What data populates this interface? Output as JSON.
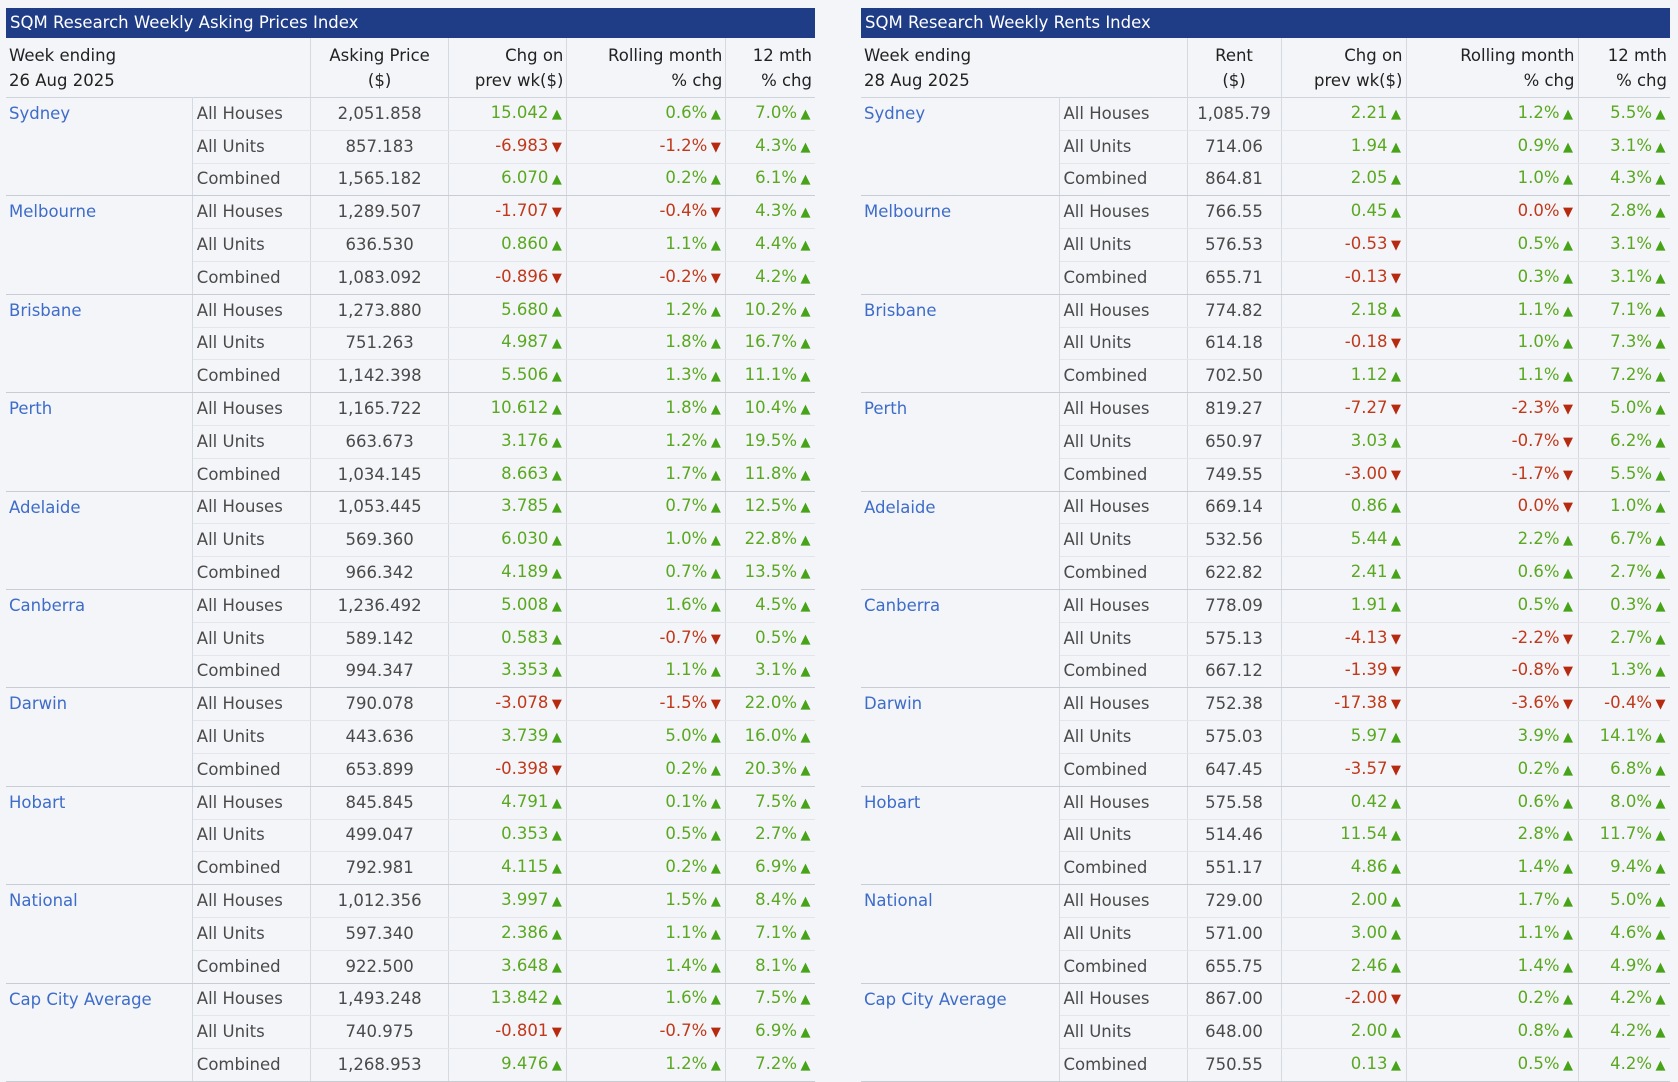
{
  "prices": {
    "title": "SQM Research Weekly Asking Prices Index",
    "headers": {
      "week_label": "Week ending",
      "week_date": "26 Aug 2025",
      "value_l1": "Asking Price",
      "value_l2": "($)",
      "chg_l1": "Chg on",
      "chg_l2": "prev wk($)",
      "roll_l1": "Rolling month",
      "roll_l2": "% chg",
      "yr_l1": "12 mth",
      "yr_l2": "% chg"
    },
    "groups": [
      {
        "city": "Sydney",
        "rows": [
          {
            "type": "All Houses",
            "value": "2,051.858",
            "chg": "15.042",
            "chg_dir": "up",
            "roll": "0.6%",
            "roll_dir": "up",
            "yr": "7.0%",
            "yr_dir": "up"
          },
          {
            "type": "All Units",
            "value": "857.183",
            "chg": "-6.983",
            "chg_dir": "down",
            "roll": "-1.2%",
            "roll_dir": "down",
            "yr": "4.3%",
            "yr_dir": "up"
          },
          {
            "type": "Combined",
            "value": "1,565.182",
            "chg": "6.070",
            "chg_dir": "up",
            "roll": "0.2%",
            "roll_dir": "up",
            "yr": "6.1%",
            "yr_dir": "up"
          }
        ]
      },
      {
        "city": "Melbourne",
        "rows": [
          {
            "type": "All Houses",
            "value": "1,289.507",
            "chg": "-1.707",
            "chg_dir": "down",
            "roll": "-0.4%",
            "roll_dir": "down",
            "yr": "4.3%",
            "yr_dir": "up"
          },
          {
            "type": "All Units",
            "value": "636.530",
            "chg": "0.860",
            "chg_dir": "up",
            "roll": "1.1%",
            "roll_dir": "up",
            "yr": "4.4%",
            "yr_dir": "up"
          },
          {
            "type": "Combined",
            "value": "1,083.092",
            "chg": "-0.896",
            "chg_dir": "down",
            "roll": "-0.2%",
            "roll_dir": "down",
            "yr": "4.2%",
            "yr_dir": "up"
          }
        ]
      },
      {
        "city": "Brisbane",
        "rows": [
          {
            "type": "All Houses",
            "value": "1,273.880",
            "chg": "5.680",
            "chg_dir": "up",
            "roll": "1.2%",
            "roll_dir": "up",
            "yr": "10.2%",
            "yr_dir": "up"
          },
          {
            "type": "All Units",
            "value": "751.263",
            "chg": "4.987",
            "chg_dir": "up",
            "roll": "1.8%",
            "roll_dir": "up",
            "yr": "16.7%",
            "yr_dir": "up"
          },
          {
            "type": "Combined",
            "value": "1,142.398",
            "chg": "5.506",
            "chg_dir": "up",
            "roll": "1.3%",
            "roll_dir": "up",
            "yr": "11.1%",
            "yr_dir": "up"
          }
        ]
      },
      {
        "city": "Perth",
        "rows": [
          {
            "type": "All Houses",
            "value": "1,165.722",
            "chg": "10.612",
            "chg_dir": "up",
            "roll": "1.8%",
            "roll_dir": "up",
            "yr": "10.4%",
            "yr_dir": "up"
          },
          {
            "type": "All Units",
            "value": "663.673",
            "chg": "3.176",
            "chg_dir": "up",
            "roll": "1.2%",
            "roll_dir": "up",
            "yr": "19.5%",
            "yr_dir": "up"
          },
          {
            "type": "Combined",
            "value": "1,034.145",
            "chg": "8.663",
            "chg_dir": "up",
            "roll": "1.7%",
            "roll_dir": "up",
            "yr": "11.8%",
            "yr_dir": "up"
          }
        ]
      },
      {
        "city": "Adelaide",
        "rows": [
          {
            "type": "All Houses",
            "value": "1,053.445",
            "chg": "3.785",
            "chg_dir": "up",
            "roll": "0.7%",
            "roll_dir": "up",
            "yr": "12.5%",
            "yr_dir": "up"
          },
          {
            "type": "All Units",
            "value": "569.360",
            "chg": "6.030",
            "chg_dir": "up",
            "roll": "1.0%",
            "roll_dir": "up",
            "yr": "22.8%",
            "yr_dir": "up"
          },
          {
            "type": "Combined",
            "value": "966.342",
            "chg": "4.189",
            "chg_dir": "up",
            "roll": "0.7%",
            "roll_dir": "up",
            "yr": "13.5%",
            "yr_dir": "up"
          }
        ]
      },
      {
        "city": "Canberra",
        "rows": [
          {
            "type": "All Houses",
            "value": "1,236.492",
            "chg": "5.008",
            "chg_dir": "up",
            "roll": "1.6%",
            "roll_dir": "up",
            "yr": "4.5%",
            "yr_dir": "up"
          },
          {
            "type": "All Units",
            "value": "589.142",
            "chg": "0.583",
            "chg_dir": "up",
            "roll": "-0.7%",
            "roll_dir": "down",
            "yr": "0.5%",
            "yr_dir": "up"
          },
          {
            "type": "Combined",
            "value": "994.347",
            "chg": "3.353",
            "chg_dir": "up",
            "roll": "1.1%",
            "roll_dir": "up",
            "yr": "3.1%",
            "yr_dir": "up"
          }
        ]
      },
      {
        "city": "Darwin",
        "rows": [
          {
            "type": "All Houses",
            "value": "790.078",
            "chg": "-3.078",
            "chg_dir": "down",
            "roll": "-1.5%",
            "roll_dir": "down",
            "yr": "22.0%",
            "yr_dir": "up"
          },
          {
            "type": "All Units",
            "value": "443.636",
            "chg": "3.739",
            "chg_dir": "up",
            "roll": "5.0%",
            "roll_dir": "up",
            "yr": "16.0%",
            "yr_dir": "up"
          },
          {
            "type": "Combined",
            "value": "653.899",
            "chg": "-0.398",
            "chg_dir": "down",
            "roll": "0.2%",
            "roll_dir": "up",
            "yr": "20.3%",
            "yr_dir": "up"
          }
        ]
      },
      {
        "city": "Hobart",
        "rows": [
          {
            "type": "All Houses",
            "value": "845.845",
            "chg": "4.791",
            "chg_dir": "up",
            "roll": "0.1%",
            "roll_dir": "up",
            "yr": "7.5%",
            "yr_dir": "up"
          },
          {
            "type": "All Units",
            "value": "499.047",
            "chg": "0.353",
            "chg_dir": "up",
            "roll": "0.5%",
            "roll_dir": "up",
            "yr": "2.7%",
            "yr_dir": "up"
          },
          {
            "type": "Combined",
            "value": "792.981",
            "chg": "4.115",
            "chg_dir": "up",
            "roll": "0.2%",
            "roll_dir": "up",
            "yr": "6.9%",
            "yr_dir": "up"
          }
        ]
      },
      {
        "city": "National",
        "rows": [
          {
            "type": "All Houses",
            "value": "1,012.356",
            "chg": "3.997",
            "chg_dir": "up",
            "roll": "1.5%",
            "roll_dir": "up",
            "yr": "8.4%",
            "yr_dir": "up"
          },
          {
            "type": "All Units",
            "value": "597.340",
            "chg": "2.386",
            "chg_dir": "up",
            "roll": "1.1%",
            "roll_dir": "up",
            "yr": "7.1%",
            "yr_dir": "up"
          },
          {
            "type": "Combined",
            "value": "922.500",
            "chg": "3.648",
            "chg_dir": "up",
            "roll": "1.4%",
            "roll_dir": "up",
            "yr": "8.1%",
            "yr_dir": "up"
          }
        ]
      },
      {
        "city": "Cap City Average",
        "rows": [
          {
            "type": "All Houses",
            "value": "1,493.248",
            "chg": "13.842",
            "chg_dir": "up",
            "roll": "1.6%",
            "roll_dir": "up",
            "yr": "7.5%",
            "yr_dir": "up"
          },
          {
            "type": "All Units",
            "value": "740.975",
            "chg": "-0.801",
            "chg_dir": "down",
            "roll": "-0.7%",
            "roll_dir": "down",
            "yr": "6.9%",
            "yr_dir": "up"
          },
          {
            "type": "Combined",
            "value": "1,268.953",
            "chg": "9.476",
            "chg_dir": "up",
            "roll": "1.2%",
            "roll_dir": "up",
            "yr": "7.2%",
            "yr_dir": "up"
          }
        ]
      }
    ]
  },
  "rents": {
    "title": "SQM Research Weekly Rents Index",
    "headers": {
      "week_label": "Week ending",
      "week_date": "28 Aug 2025",
      "value_l1": "Rent",
      "value_l2": "($)",
      "chg_l1": "Chg on",
      "chg_l2": "prev wk($)",
      "roll_l1": "Rolling month",
      "roll_l2": "% chg",
      "yr_l1": "12 mth",
      "yr_l2": "% chg"
    },
    "groups": [
      {
        "city": "Sydney",
        "rows": [
          {
            "type": "All Houses",
            "value": "1,085.79",
            "chg": "2.21",
            "chg_dir": "up",
            "roll": "1.2%",
            "roll_dir": "up",
            "yr": "5.5%",
            "yr_dir": "up"
          },
          {
            "type": "All Units",
            "value": "714.06",
            "chg": "1.94",
            "chg_dir": "up",
            "roll": "0.9%",
            "roll_dir": "up",
            "yr": "3.1%",
            "yr_dir": "up"
          },
          {
            "type": "Combined",
            "value": "864.81",
            "chg": "2.05",
            "chg_dir": "up",
            "roll": "1.0%",
            "roll_dir": "up",
            "yr": "4.3%",
            "yr_dir": "up"
          }
        ]
      },
      {
        "city": "Melbourne",
        "rows": [
          {
            "type": "All Houses",
            "value": "766.55",
            "chg": "0.45",
            "chg_dir": "up",
            "roll": "0.0%",
            "roll_dir": "down",
            "yr": "2.8%",
            "yr_dir": "up"
          },
          {
            "type": "All Units",
            "value": "576.53",
            "chg": "-0.53",
            "chg_dir": "down",
            "roll": "0.5%",
            "roll_dir": "up",
            "yr": "3.1%",
            "yr_dir": "up"
          },
          {
            "type": "Combined",
            "value": "655.71",
            "chg": "-0.13",
            "chg_dir": "down",
            "roll": "0.3%",
            "roll_dir": "up",
            "yr": "3.1%",
            "yr_dir": "up"
          }
        ]
      },
      {
        "city": "Brisbane",
        "rows": [
          {
            "type": "All Houses",
            "value": "774.82",
            "chg": "2.18",
            "chg_dir": "up",
            "roll": "1.1%",
            "roll_dir": "up",
            "yr": "7.1%",
            "yr_dir": "up"
          },
          {
            "type": "All Units",
            "value": "614.18",
            "chg": "-0.18",
            "chg_dir": "down",
            "roll": "1.0%",
            "roll_dir": "up",
            "yr": "7.3%",
            "yr_dir": "up"
          },
          {
            "type": "Combined",
            "value": "702.50",
            "chg": "1.12",
            "chg_dir": "up",
            "roll": "1.1%",
            "roll_dir": "up",
            "yr": "7.2%",
            "yr_dir": "up"
          }
        ]
      },
      {
        "city": "Perth",
        "rows": [
          {
            "type": "All Houses",
            "value": "819.27",
            "chg": "-7.27",
            "chg_dir": "down",
            "roll": "-2.3%",
            "roll_dir": "down",
            "yr": "5.0%",
            "yr_dir": "up"
          },
          {
            "type": "All Units",
            "value": "650.97",
            "chg": "3.03",
            "chg_dir": "up",
            "roll": "-0.7%",
            "roll_dir": "down",
            "yr": "6.2%",
            "yr_dir": "up"
          },
          {
            "type": "Combined",
            "value": "749.55",
            "chg": "-3.00",
            "chg_dir": "down",
            "roll": "-1.7%",
            "roll_dir": "down",
            "yr": "5.5%",
            "yr_dir": "up"
          }
        ]
      },
      {
        "city": "Adelaide",
        "rows": [
          {
            "type": "All Houses",
            "value": "669.14",
            "chg": "0.86",
            "chg_dir": "up",
            "roll": "0.0%",
            "roll_dir": "down",
            "yr": "1.0%",
            "yr_dir": "up"
          },
          {
            "type": "All Units",
            "value": "532.56",
            "chg": "5.44",
            "chg_dir": "up",
            "roll": "2.2%",
            "roll_dir": "up",
            "yr": "6.7%",
            "yr_dir": "up"
          },
          {
            "type": "Combined",
            "value": "622.82",
            "chg": "2.41",
            "chg_dir": "up",
            "roll": "0.6%",
            "roll_dir": "up",
            "yr": "2.7%",
            "yr_dir": "up"
          }
        ]
      },
      {
        "city": "Canberra",
        "rows": [
          {
            "type": "All Houses",
            "value": "778.09",
            "chg": "1.91",
            "chg_dir": "up",
            "roll": "0.5%",
            "roll_dir": "up",
            "yr": "0.3%",
            "yr_dir": "up"
          },
          {
            "type": "All Units",
            "value": "575.13",
            "chg": "-4.13",
            "chg_dir": "down",
            "roll": "-2.2%",
            "roll_dir": "down",
            "yr": "2.7%",
            "yr_dir": "up"
          },
          {
            "type": "Combined",
            "value": "667.12",
            "chg": "-1.39",
            "chg_dir": "down",
            "roll": "-0.8%",
            "roll_dir": "down",
            "yr": "1.3%",
            "yr_dir": "up"
          }
        ]
      },
      {
        "city": "Darwin",
        "rows": [
          {
            "type": "All Houses",
            "value": "752.38",
            "chg": "-17.38",
            "chg_dir": "down",
            "roll": "-3.6%",
            "roll_dir": "down",
            "yr": "-0.4%",
            "yr_dir": "down"
          },
          {
            "type": "All Units",
            "value": "575.03",
            "chg": "5.97",
            "chg_dir": "up",
            "roll": "3.9%",
            "roll_dir": "up",
            "yr": "14.1%",
            "yr_dir": "up"
          },
          {
            "type": "Combined",
            "value": "647.45",
            "chg": "-3.57",
            "chg_dir": "down",
            "roll": "0.2%",
            "roll_dir": "up",
            "yr": "6.8%",
            "yr_dir": "up"
          }
        ]
      },
      {
        "city": "Hobart",
        "rows": [
          {
            "type": "All Houses",
            "value": "575.58",
            "chg": "0.42",
            "chg_dir": "up",
            "roll": "0.6%",
            "roll_dir": "up",
            "yr": "8.0%",
            "yr_dir": "up"
          },
          {
            "type": "All Units",
            "value": "514.46",
            "chg": "11.54",
            "chg_dir": "up",
            "roll": "2.8%",
            "roll_dir": "up",
            "yr": "11.7%",
            "yr_dir": "up"
          },
          {
            "type": "Combined",
            "value": "551.17",
            "chg": "4.86",
            "chg_dir": "up",
            "roll": "1.4%",
            "roll_dir": "up",
            "yr": "9.4%",
            "yr_dir": "up"
          }
        ]
      },
      {
        "city": "National",
        "rows": [
          {
            "type": "All Houses",
            "value": "729.00",
            "chg": "2.00",
            "chg_dir": "up",
            "roll": "1.7%",
            "roll_dir": "up",
            "yr": "5.0%",
            "yr_dir": "up"
          },
          {
            "type": "All Units",
            "value": "571.00",
            "chg": "3.00",
            "chg_dir": "up",
            "roll": "1.1%",
            "roll_dir": "up",
            "yr": "4.6%",
            "yr_dir": "up"
          },
          {
            "type": "Combined",
            "value": "655.75",
            "chg": "2.46",
            "chg_dir": "up",
            "roll": "1.4%",
            "roll_dir": "up",
            "yr": "4.9%",
            "yr_dir": "up"
          }
        ]
      },
      {
        "city": "Cap City Average",
        "rows": [
          {
            "type": "All Houses",
            "value": "867.00",
            "chg": "-2.00",
            "chg_dir": "down",
            "roll": "0.2%",
            "roll_dir": "up",
            "yr": "4.2%",
            "yr_dir": "up"
          },
          {
            "type": "All Units",
            "value": "648.00",
            "chg": "2.00",
            "chg_dir": "up",
            "roll": "0.8%",
            "roll_dir": "up",
            "yr": "4.2%",
            "yr_dir": "up"
          },
          {
            "type": "Combined",
            "value": "750.55",
            "chg": "0.13",
            "chg_dir": "up",
            "roll": "0.5%",
            "roll_dir": "up",
            "yr": "4.2%",
            "yr_dir": "up"
          }
        ]
      }
    ]
  },
  "colors": {
    "title_bar": "#1f3c86",
    "city_link": "#3d6cc9",
    "positive": "#5aa820",
    "negative": "#c0391b"
  },
  "icons": {
    "up": "triangle-up-icon",
    "down": "triangle-down-icon"
  }
}
